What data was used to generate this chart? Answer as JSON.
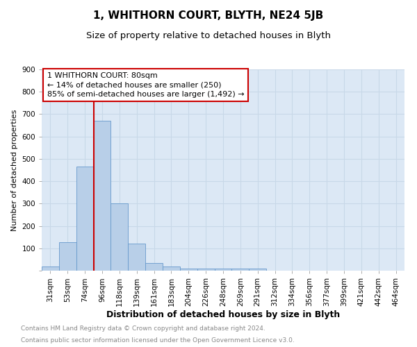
{
  "title": "1, WHITHORN COURT, BLYTH, NE24 5JB",
  "subtitle": "Size of property relative to detached houses in Blyth",
  "xlabel": "Distribution of detached houses by size in Blyth",
  "ylabel": "Number of detached properties",
  "footnote1": "Contains HM Land Registry data © Crown copyright and database right 2024.",
  "footnote2": "Contains public sector information licensed under the Open Government Licence v3.0.",
  "bin_labels": [
    "31sqm",
    "53sqm",
    "74sqm",
    "96sqm",
    "118sqm",
    "139sqm",
    "161sqm",
    "183sqm",
    "204sqm",
    "226sqm",
    "248sqm",
    "269sqm",
    "291sqm",
    "312sqm",
    "334sqm",
    "356sqm",
    "377sqm",
    "399sqm",
    "421sqm",
    "442sqm",
    "464sqm"
  ],
  "bar_values": [
    18,
    128,
    465,
    670,
    300,
    120,
    35,
    18,
    8,
    8,
    8,
    8,
    8,
    0,
    0,
    0,
    0,
    0,
    0,
    0,
    0
  ],
  "bar_color": "#b8cfe8",
  "bar_edgecolor": "#6699cc",
  "vline_x": 2.5,
  "vline_color": "#cc0000",
  "annotation_text": "1 WHITHORN COURT: 80sqm\n← 14% of detached houses are smaller (250)\n85% of semi-detached houses are larger (1,492) →",
  "annotation_box_color": "#cc0000",
  "ylim": [
    0,
    900
  ],
  "yticks": [
    0,
    100,
    200,
    300,
    400,
    500,
    600,
    700,
    800,
    900
  ],
  "grid_color": "#c8d8e8",
  "bg_color": "#dce8f5",
  "title_fontsize": 11,
  "subtitle_fontsize": 9.5,
  "xlabel_fontsize": 9,
  "ylabel_fontsize": 8,
  "tick_fontsize": 7.5,
  "annotation_fontsize": 8,
  "footnote_fontsize": 6.5,
  "footnote_color": "#888888"
}
